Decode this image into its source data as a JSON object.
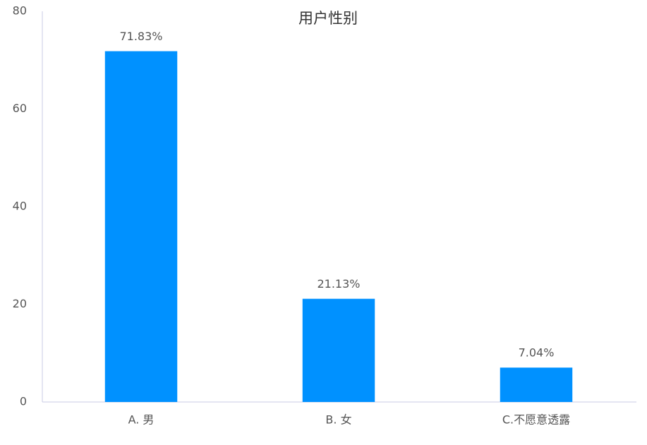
{
  "chart_data": {
    "type": "bar",
    "title": "用户性别",
    "categories": [
      "A. 男",
      "B. 女",
      "C.不愿意透露"
    ],
    "values": [
      71.83,
      21.13,
      7.04
    ],
    "value_labels": [
      "71.83%",
      "21.13%",
      "7.04%"
    ],
    "color": "#0091ff",
    "ylim": [
      0,
      80
    ],
    "yticks": [
      0,
      20,
      40,
      60,
      80
    ],
    "grid": false
  }
}
